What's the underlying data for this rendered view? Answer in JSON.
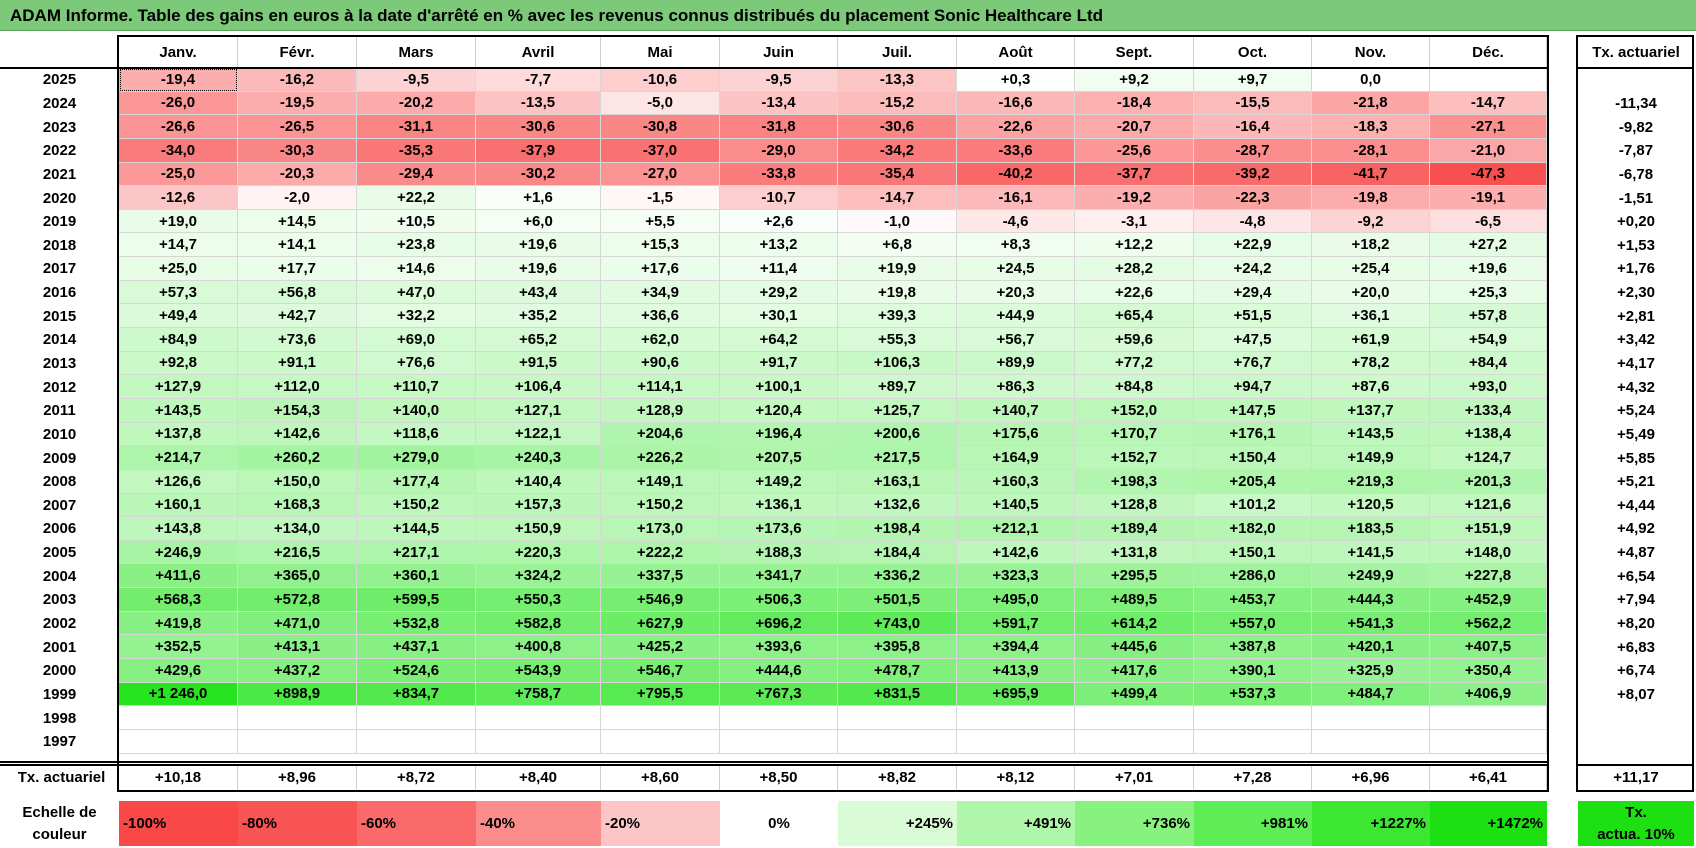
{
  "title": "ADAM Informe. Table des gains en euros à la date d'arrêté en % avec les revenus connus distribués du placement Sonic Healthcare Ltd",
  "months": [
    "Janv.",
    "Févr.",
    "Mars",
    "Avril",
    "Mai",
    "Juin",
    "Juil.",
    "Août",
    "Sept.",
    "Oct.",
    "Nov.",
    "Déc."
  ],
  "tx_header": "Tx. actuariel",
  "rows": [
    {
      "year": "2025",
      "values": [
        "-19,4",
        "-16,2",
        "-9,5",
        "-7,7",
        "-10,6",
        "-9,5",
        "-13,3",
        "+0,3",
        "+9,2",
        "+9,7",
        "0,0",
        ""
      ],
      "tx": ""
    },
    {
      "year": "2024",
      "values": [
        "-26,0",
        "-19,5",
        "-20,2",
        "-13,5",
        "-5,0",
        "-13,4",
        "-15,2",
        "-16,6",
        "-18,4",
        "-15,5",
        "-21,8",
        "-14,7"
      ],
      "tx": "-11,34"
    },
    {
      "year": "2023",
      "values": [
        "-26,6",
        "-26,5",
        "-31,1",
        "-30,6",
        "-30,8",
        "-31,8",
        "-30,6",
        "-22,6",
        "-20,7",
        "-16,4",
        "-18,3",
        "-27,1"
      ],
      "tx": "-9,82"
    },
    {
      "year": "2022",
      "values": [
        "-34,0",
        "-30,3",
        "-35,3",
        "-37,9",
        "-37,0",
        "-29,0",
        "-34,2",
        "-33,6",
        "-25,6",
        "-28,7",
        "-28,1",
        "-21,0"
      ],
      "tx": "-7,87"
    },
    {
      "year": "2021",
      "values": [
        "-25,0",
        "-20,3",
        "-29,4",
        "-30,2",
        "-27,0",
        "-33,8",
        "-35,4",
        "-40,2",
        "-37,7",
        "-39,2",
        "-41,7",
        "-47,3"
      ],
      "tx": "-6,78"
    },
    {
      "year": "2020",
      "values": [
        "-12,6",
        "-2,0",
        "+22,2",
        "+1,6",
        "-1,5",
        "-10,7",
        "-14,7",
        "-16,1",
        "-19,2",
        "-22,3",
        "-19,8",
        "-19,1"
      ],
      "tx": "-1,51"
    },
    {
      "year": "2019",
      "values": [
        "+19,0",
        "+14,5",
        "+10,5",
        "+6,0",
        "+5,5",
        "+2,6",
        "-1,0",
        "-4,6",
        "-3,1",
        "-4,8",
        "-9,2",
        "-6,5"
      ],
      "tx": "+0,20"
    },
    {
      "year": "2018",
      "values": [
        "+14,7",
        "+14,1",
        "+23,8",
        "+19,6",
        "+15,3",
        "+13,2",
        "+6,8",
        "+8,3",
        "+12,2",
        "+22,9",
        "+18,2",
        "+27,2"
      ],
      "tx": "+1,53"
    },
    {
      "year": "2017",
      "values": [
        "+25,0",
        "+17,7",
        "+14,6",
        "+19,6",
        "+17,6",
        "+11,4",
        "+19,9",
        "+24,5",
        "+28,2",
        "+24,2",
        "+25,4",
        "+19,6"
      ],
      "tx": "+1,76"
    },
    {
      "year": "2016",
      "values": [
        "+57,3",
        "+56,8",
        "+47,0",
        "+43,4",
        "+34,9",
        "+29,2",
        "+19,8",
        "+20,3",
        "+22,6",
        "+29,4",
        "+20,0",
        "+25,3"
      ],
      "tx": "+2,30"
    },
    {
      "year": "2015",
      "values": [
        "+49,4",
        "+42,7",
        "+32,2",
        "+35,2",
        "+36,6",
        "+30,1",
        "+39,3",
        "+44,9",
        "+65,4",
        "+51,5",
        "+36,1",
        "+57,8"
      ],
      "tx": "+2,81"
    },
    {
      "year": "2014",
      "values": [
        "+84,9",
        "+73,6",
        "+69,0",
        "+65,2",
        "+62,0",
        "+64,2",
        "+55,3",
        "+56,7",
        "+59,6",
        "+47,5",
        "+61,9",
        "+54,9"
      ],
      "tx": "+3,42"
    },
    {
      "year": "2013",
      "values": [
        "+92,8",
        "+91,1",
        "+76,6",
        "+91,5",
        "+90,6",
        "+91,7",
        "+106,3",
        "+89,9",
        "+77,2",
        "+76,7",
        "+78,2",
        "+84,4"
      ],
      "tx": "+4,17"
    },
    {
      "year": "2012",
      "values": [
        "+127,9",
        "+112,0",
        "+110,7",
        "+106,4",
        "+114,1",
        "+100,1",
        "+89,7",
        "+86,3",
        "+84,8",
        "+94,7",
        "+87,6",
        "+93,0"
      ],
      "tx": "+4,32"
    },
    {
      "year": "2011",
      "values": [
        "+143,5",
        "+154,3",
        "+140,0",
        "+127,1",
        "+128,9",
        "+120,4",
        "+125,7",
        "+140,7",
        "+152,0",
        "+147,5",
        "+137,7",
        "+133,4"
      ],
      "tx": "+5,24"
    },
    {
      "year": "2010",
      "values": [
        "+137,8",
        "+142,6",
        "+118,6",
        "+122,1",
        "+204,6",
        "+196,4",
        "+200,6",
        "+175,6",
        "+170,7",
        "+176,1",
        "+143,5",
        "+138,4"
      ],
      "tx": "+5,49"
    },
    {
      "year": "2009",
      "values": [
        "+214,7",
        "+260,2",
        "+279,0",
        "+240,3",
        "+226,2",
        "+207,5",
        "+217,5",
        "+164,9",
        "+152,7",
        "+150,4",
        "+149,9",
        "+124,7"
      ],
      "tx": "+5,85"
    },
    {
      "year": "2008",
      "values": [
        "+126,6",
        "+150,0",
        "+177,4",
        "+140,4",
        "+149,1",
        "+149,2",
        "+163,1",
        "+160,3",
        "+198,3",
        "+205,4",
        "+219,3",
        "+201,3"
      ],
      "tx": "+5,21"
    },
    {
      "year": "2007",
      "values": [
        "+160,1",
        "+168,3",
        "+150,2",
        "+157,3",
        "+150,2",
        "+136,1",
        "+132,6",
        "+140,5",
        "+128,8",
        "+101,2",
        "+120,5",
        "+121,6"
      ],
      "tx": "+4,44"
    },
    {
      "year": "2006",
      "values": [
        "+143,8",
        "+134,0",
        "+144,5",
        "+150,9",
        "+173,0",
        "+173,6",
        "+198,4",
        "+212,1",
        "+189,4",
        "+182,0",
        "+183,5",
        "+151,9"
      ],
      "tx": "+4,92"
    },
    {
      "year": "2005",
      "values": [
        "+246,9",
        "+216,5",
        "+217,1",
        "+220,3",
        "+222,2",
        "+188,3",
        "+184,4",
        "+142,6",
        "+131,8",
        "+150,1",
        "+141,5",
        "+148,0"
      ],
      "tx": "+4,87"
    },
    {
      "year": "2004",
      "values": [
        "+411,6",
        "+365,0",
        "+360,1",
        "+324,2",
        "+337,5",
        "+341,7",
        "+336,2",
        "+323,3",
        "+295,5",
        "+286,0",
        "+249,9",
        "+227,8"
      ],
      "tx": "+6,54"
    },
    {
      "year": "2003",
      "values": [
        "+568,3",
        "+572,8",
        "+599,5",
        "+550,3",
        "+546,9",
        "+506,3",
        "+501,5",
        "+495,0",
        "+489,5",
        "+453,7",
        "+444,3",
        "+452,9"
      ],
      "tx": "+7,94"
    },
    {
      "year": "2002",
      "values": [
        "+419,8",
        "+471,0",
        "+532,8",
        "+582,8",
        "+627,9",
        "+696,2",
        "+743,0",
        "+591,7",
        "+614,2",
        "+557,0",
        "+541,3",
        "+562,2"
      ],
      "tx": "+8,20"
    },
    {
      "year": "2001",
      "values": [
        "+352,5",
        "+413,1",
        "+437,1",
        "+400,8",
        "+425,2",
        "+393,6",
        "+395,8",
        "+394,4",
        "+445,6",
        "+387,8",
        "+420,1",
        "+407,5"
      ],
      "tx": "+6,83"
    },
    {
      "year": "2000",
      "values": [
        "+429,6",
        "+437,2",
        "+524,6",
        "+543,9",
        "+546,7",
        "+444,6",
        "+478,7",
        "+413,9",
        "+417,6",
        "+390,1",
        "+325,9",
        "+350,4"
      ],
      "tx": "+6,74"
    },
    {
      "year": "1999",
      "values": [
        "+1 246,0",
        "+898,9",
        "+834,7",
        "+758,7",
        "+795,5",
        "+767,3",
        "+831,5",
        "+695,9",
        "+499,4",
        "+537,3",
        "+484,7",
        "+406,9"
      ],
      "tx": "+8,07"
    },
    {
      "year": "1998",
      "values": [
        "",
        "",
        "",
        "",
        "",
        "",
        "",
        "",
        "",
        "",
        "",
        ""
      ],
      "tx": ""
    },
    {
      "year": "1997",
      "values": [
        "",
        "",
        "",
        "",
        "",
        "",
        "",
        "",
        "",
        "",
        "",
        ""
      ],
      "tx": ""
    }
  ],
  "summary": {
    "label": "Tx. actuariel",
    "values": [
      "+10,18",
      "+8,96",
      "+8,72",
      "+8,40",
      "+8,60",
      "+8,50",
      "+8,82",
      "+8,12",
      "+7,01",
      "+7,28",
      "+6,96",
      "+6,41"
    ],
    "total": "+11,17"
  },
  "legend": {
    "label_line1": "Echelle de",
    "label_line2": "couleur",
    "items": [
      {
        "label": "-100%",
        "color": "#f84848"
      },
      {
        "label": "-80%",
        "color": "#f95454"
      },
      {
        "label": "-60%",
        "color": "#fa6a6a"
      },
      {
        "label": "-40%",
        "color": "#fb8c8c"
      },
      {
        "label": "-20%",
        "color": "#fdc6c6"
      },
      {
        "label": "0%",
        "color": "#ffffff"
      },
      {
        "label": "+245%",
        "color": "#d9fbd6"
      },
      {
        "label": "+491%",
        "color": "#b0f6aa"
      },
      {
        "label": "+736%",
        "color": "#88f27f"
      },
      {
        "label": "+981%",
        "color": "#5eed54"
      },
      {
        "label": "+1227%",
        "color": "#3ce732"
      },
      {
        "label": "+1472%",
        "color": "#1de012"
      }
    ],
    "tx_line1": "Tx.",
    "tx_line2": "actua. 10%",
    "tx_color": "#1de012"
  }
}
